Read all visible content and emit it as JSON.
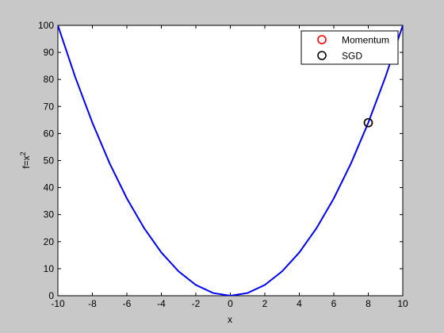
{
  "chart_data": {
    "type": "line",
    "title": "",
    "xlabel": "x",
    "ylabel_base": "f=x",
    "ylabel_superscript": "2",
    "xlim": [
      -10,
      10
    ],
    "ylim": [
      0,
      100
    ],
    "x_ticks": [
      -10,
      -8,
      -6,
      -4,
      -2,
      0,
      2,
      4,
      6,
      8,
      10
    ],
    "y_ticks": [
      0,
      10,
      20,
      30,
      40,
      50,
      60,
      70,
      80,
      90,
      100
    ],
    "grid": false,
    "legend_position": "top-right",
    "curve": {
      "x": [
        -10,
        -9,
        -8,
        -7,
        -6,
        -5,
        -4,
        -3,
        -2,
        -1,
        0,
        1,
        2,
        3,
        4,
        5,
        6,
        7,
        8,
        9,
        10
      ],
      "y": [
        100,
        81,
        64,
        49,
        36,
        25,
        16,
        9,
        4,
        1,
        0,
        1,
        4,
        9,
        16,
        25,
        36,
        49,
        64,
        81,
        100
      ],
      "color": "#0000ff"
    },
    "series": [
      {
        "name": "Momentum",
        "x": [
          8
        ],
        "y": [
          64
        ],
        "marker": "circle",
        "color": "#ff0000"
      },
      {
        "name": "SGD",
        "x": [
          8
        ],
        "y": [
          64
        ],
        "marker": "circle",
        "color": "#000000"
      }
    ]
  },
  "colors": {
    "figure_background": "#c8c8c8",
    "axes_background": "#ffffff",
    "curve": "#0000ff"
  }
}
